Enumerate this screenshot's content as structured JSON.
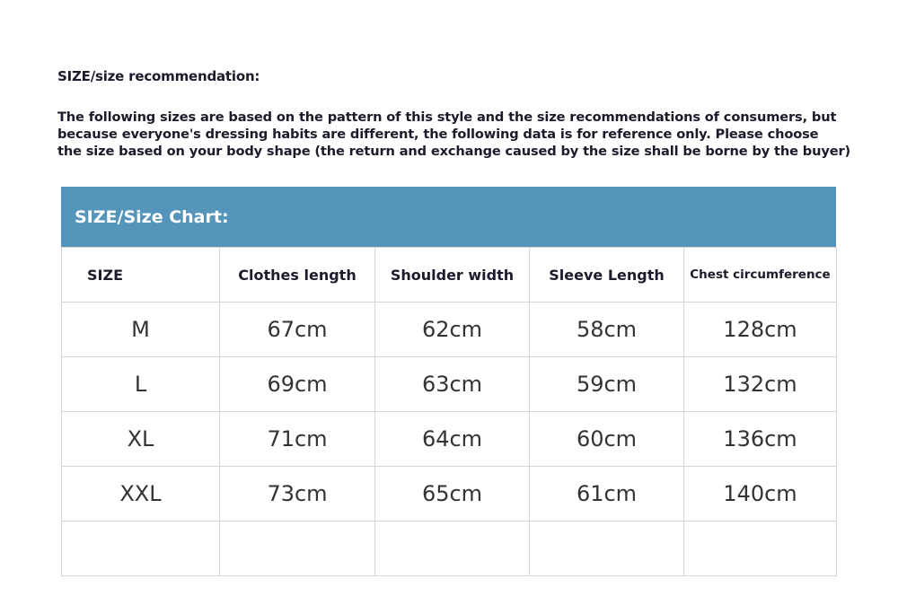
{
  "heading": "SIZE/size recommendation:",
  "intro_lines": [
    "The following sizes are based on the pattern of this style and the size recommendations of consumers, but",
    "because everyone's dressing habits are different, the following data is for reference only. Please choose",
    "the size based on your body shape (the return and exchange caused by the size shall be borne by the buyer)"
  ],
  "chart": {
    "title": "SIZE/Size Chart:",
    "accent_color": "#5594bb",
    "columns": [
      "SIZE",
      "Clothes length",
      "Shoulder width",
      "Sleeve Length",
      "Chest circumference"
    ],
    "rows": [
      [
        "M",
        "67cm",
        "62cm",
        "58cm",
        "128cm"
      ],
      [
        "L",
        "69cm",
        "63cm",
        "59cm",
        "132cm"
      ],
      [
        "XL",
        "71cm",
        "64cm",
        "60cm",
        "136cm"
      ],
      [
        "XXL",
        "73cm",
        "65cm",
        "61cm",
        "140cm"
      ],
      [
        "",
        "",
        "",
        "",
        ""
      ]
    ]
  }
}
